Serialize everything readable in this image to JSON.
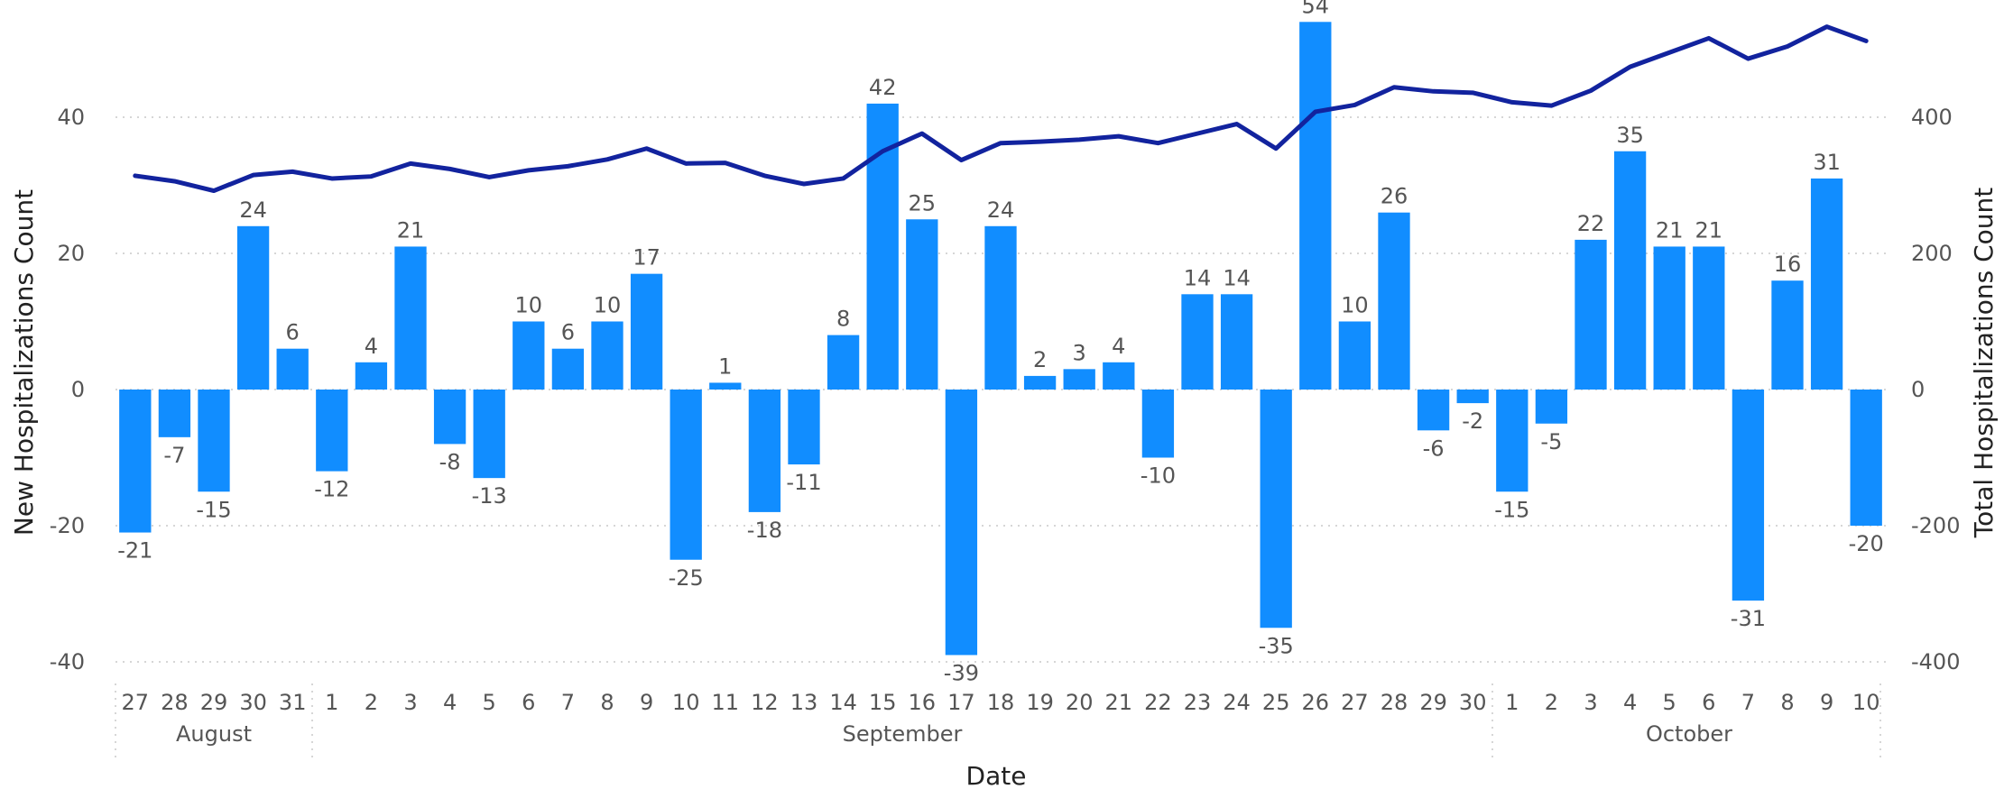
{
  "chart_data": {
    "type": "bar",
    "xlabel": "Date",
    "ylabel": "New Hospitalizations Count",
    "y2label": "Total Hospitalizations Count",
    "ylim": [
      -40,
      50
    ],
    "y2lim": [
      -400,
      500
    ],
    "yticks": [
      -40,
      -20,
      0,
      20,
      40
    ],
    "y2ticks": [
      -400,
      -200,
      0,
      200,
      400
    ],
    "grid": true,
    "categories": [
      "27",
      "28",
      "29",
      "30",
      "31",
      "1",
      "2",
      "3",
      "4",
      "5",
      "6",
      "7",
      "8",
      "9",
      "10",
      "11",
      "12",
      "13",
      "14",
      "15",
      "16",
      "17",
      "18",
      "19",
      "20",
      "21",
      "22",
      "23",
      "24",
      "25",
      "26",
      "27",
      "28",
      "29",
      "30",
      "1",
      "2",
      "3",
      "4",
      "5",
      "6",
      "7",
      "8",
      "9",
      "10"
    ],
    "months": [
      {
        "name": "August",
        "start": 0,
        "end": 4
      },
      {
        "name": "September",
        "start": 5,
        "end": 34
      },
      {
        "name": "October",
        "start": 35,
        "end": 44
      }
    ],
    "series": [
      {
        "type": "bar",
        "color": "#118dff",
        "values": [
          -21,
          -7,
          -15,
          24,
          6,
          -12,
          4,
          21,
          -8,
          -13,
          10,
          6,
          10,
          17,
          -25,
          1,
          -18,
          -11,
          8,
          42,
          25,
          -39,
          24,
          2,
          3,
          4,
          -10,
          14,
          14,
          -35,
          54,
          10,
          26,
          -6,
          -2,
          -15,
          -5,
          22,
          35,
          21,
          21,
          -31,
          16,
          31,
          -20
        ]
      },
      {
        "type": "line",
        "axis": "right",
        "color": "#12239e",
        "values": [
          314,
          306,
          292,
          315,
          320,
          310,
          313,
          332,
          324,
          312,
          322,
          328,
          338,
          354,
          332,
          333,
          314,
          302,
          310,
          350,
          376,
          337,
          362,
          364,
          367,
          372,
          362,
          376,
          390,
          354,
          408,
          418,
          444,
          438,
          436,
          422,
          417,
          439,
          474,
          495,
          516,
          486,
          504,
          533,
          512
        ]
      }
    ]
  }
}
